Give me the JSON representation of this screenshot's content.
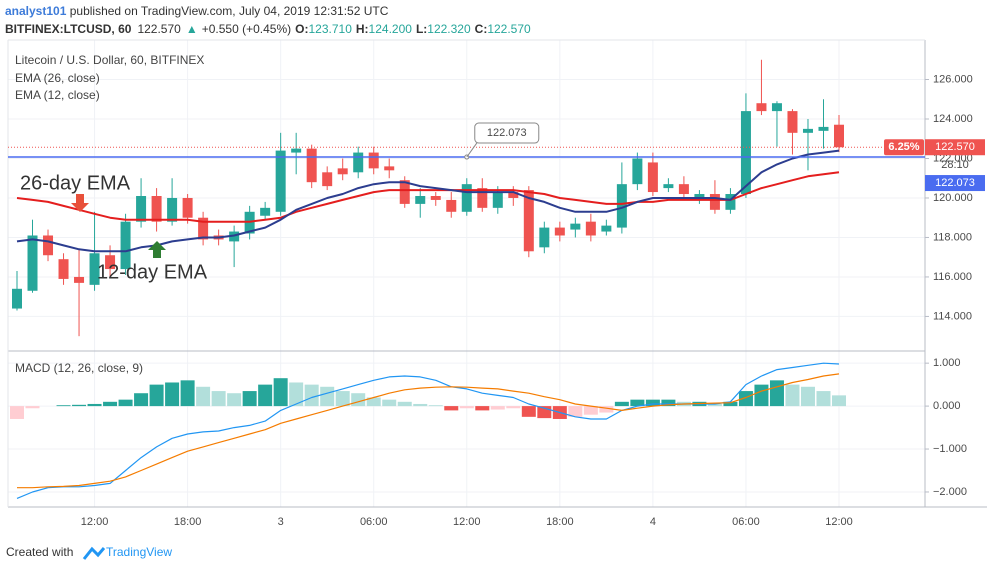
{
  "header": {
    "author": "analyst101",
    "published": " published on TradingView.com, July 04, 2019 12:31:52 UTC",
    "symbol": "BITFINEX:LTCUSD, 60",
    "last": "122.570",
    "change_arrow": "▲",
    "change": "+0.550 (+0.45%)",
    "ohlc": [
      {
        "key": "O:",
        "value": "123.710"
      },
      {
        "key": "H:",
        "value": "124.200"
      },
      {
        "key": "L:",
        "value": "122.320"
      },
      {
        "key": "C:",
        "value": "122.570"
      }
    ]
  },
  "chart_data": [
    {
      "type": "candlestick",
      "title": "Litecoin / U.S. Dollar, 60, BITFINEX",
      "categories": [
        null,
        null,
        null,
        null,
        null,
        "12:00",
        null,
        null,
        null,
        null,
        null,
        "18:00",
        null,
        null,
        null,
        null,
        null,
        "3",
        null,
        null,
        null,
        null,
        null,
        "06:00",
        null,
        null,
        null,
        null,
        null,
        "12:00",
        null,
        null,
        null,
        null,
        null,
        "18:00",
        null,
        null,
        null,
        null,
        null,
        "4",
        null,
        null,
        null,
        null,
        null,
        "06:00",
        null,
        null,
        null,
        null,
        null,
        "12:00"
      ],
      "open": [
        114.4,
        115.3,
        118.1,
        116.9,
        116.0,
        115.6,
        117.1,
        116.4,
        118.8,
        120.1,
        118.8,
        120.0,
        119.0,
        118.1,
        117.8,
        118.2,
        119.1,
        119.3,
        122.3,
        122.5,
        121.3,
        121.5,
        121.3,
        122.3,
        121.6,
        120.9,
        119.7,
        120.1,
        119.9,
        119.3,
        120.5,
        119.5,
        120.3,
        120.4,
        117.5,
        118.5,
        118.4,
        118.8,
        118.3,
        118.5,
        120.7,
        121.8,
        120.5,
        120.7,
        120.0,
        120.2,
        119.4,
        120.2,
        124.8,
        124.4,
        124.4,
        123.3,
        123.4,
        123.71
      ],
      "high": [
        116.3,
        118.9,
        118.4,
        117.2,
        117.4,
        119.3,
        117.6,
        119.2,
        121.0,
        120.5,
        121.0,
        120.2,
        119.3,
        118.4,
        118.6,
        119.6,
        119.8,
        123.3,
        123.3,
        122.7,
        121.6,
        122.0,
        122.6,
        122.6,
        122.0,
        121.1,
        120.5,
        120.3,
        120.3,
        121.0,
        121.0,
        120.6,
        120.6,
        120.6,
        118.8,
        118.8,
        119.0,
        119.2,
        118.9,
        121.8,
        122.3,
        122.3,
        121.0,
        121.1,
        120.4,
        120.9,
        120.5,
        125.3,
        127.0,
        124.9,
        124.5,
        124.0,
        125.0,
        124.2
      ],
      "low": [
        114.3,
        115.2,
        116.8,
        115.6,
        113.0,
        115.3,
        116.0,
        116.1,
        118.5,
        118.3,
        118.6,
        118.7,
        117.6,
        117.6,
        116.5,
        117.9,
        118.9,
        119.1,
        121.2,
        120.5,
        120.4,
        120.9,
        121.0,
        121.2,
        121.0,
        119.5,
        119.0,
        119.6,
        119.0,
        119.1,
        119.3,
        119.2,
        119.6,
        117.0,
        117.2,
        117.8,
        118.0,
        117.8,
        118.1,
        118.2,
        120.4,
        120.1,
        120.3,
        119.9,
        119.7,
        119.2,
        119.2,
        120.0,
        124.2,
        122.6,
        122.2,
        121.4,
        122.5,
        122.32
      ],
      "close": [
        115.4,
        118.1,
        117.1,
        115.9,
        115.7,
        117.2,
        116.4,
        118.8,
        120.1,
        118.8,
        120.0,
        119.0,
        117.9,
        117.9,
        118.3,
        119.3,
        119.5,
        122.4,
        122.5,
        120.8,
        120.6,
        121.2,
        122.3,
        121.5,
        121.4,
        119.7,
        120.1,
        119.9,
        119.3,
        120.7,
        119.5,
        120.3,
        120.0,
        117.3,
        118.5,
        118.1,
        118.7,
        118.1,
        118.6,
        120.7,
        122.0,
        120.3,
        120.7,
        120.2,
        120.2,
        119.4,
        120.2,
        124.4,
        124.4,
        124.8,
        123.3,
        123.5,
        123.6,
        122.57
      ],
      "up_color": "#26a69a",
      "down_color": "#ef5350",
      "series": [
        {
          "name": "EMA (26, close)",
          "color": "#e41e1e",
          "values": [
            120.0,
            119.9,
            119.8,
            119.6,
            119.4,
            119.2,
            119.0,
            118.9,
            118.9,
            118.9,
            118.9,
            118.9,
            118.8,
            118.8,
            118.8,
            118.8,
            118.9,
            119.0,
            119.3,
            119.5,
            119.7,
            119.9,
            120.1,
            120.3,
            120.4,
            120.4,
            120.4,
            120.4,
            120.4,
            120.4,
            120.4,
            120.4,
            120.4,
            120.3,
            120.2,
            120.0,
            119.9,
            119.8,
            119.7,
            119.7,
            119.8,
            119.8,
            119.9,
            119.9,
            119.9,
            119.9,
            119.9,
            120.2,
            120.5,
            120.7,
            120.9,
            121.1,
            121.2,
            121.3
          ]
        },
        {
          "name": "EMA (12, close)",
          "color": "#2c3d8f",
          "values": [
            117.8,
            117.9,
            117.8,
            117.6,
            117.4,
            117.3,
            117.3,
            117.3,
            117.5,
            117.6,
            117.8,
            117.9,
            118.0,
            118.0,
            118.1,
            118.3,
            118.5,
            118.9,
            119.4,
            119.7,
            120.0,
            120.2,
            120.5,
            120.7,
            120.8,
            120.8,
            120.6,
            120.5,
            120.4,
            120.3,
            120.3,
            120.3,
            120.3,
            120.0,
            119.8,
            119.5,
            119.3,
            119.3,
            119.3,
            119.5,
            119.8,
            120.0,
            120.0,
            120.0,
            120.0,
            120.0,
            119.9,
            120.6,
            121.3,
            121.7,
            122.0,
            122.2,
            122.3,
            122.4
          ]
        }
      ],
      "ylim": [
        112.3,
        127.9
      ],
      "yticks": [
        {
          "value": 114,
          "label": "114.000"
        },
        {
          "value": 116,
          "label": "116.000"
        },
        {
          "value": 118,
          "label": "118.000"
        },
        {
          "value": 120,
          "label": "120.000"
        },
        {
          "value": 122,
          "label": "122.000"
        },
        {
          "value": 124,
          "label": "124.000"
        },
        {
          "value": 126,
          "label": "126.000"
        }
      ],
      "grid": true,
      "horizontal_lines": [
        {
          "value": 122.57,
          "label": "122.570",
          "color": "#ef5350",
          "style": "dotted"
        },
        {
          "value": 122.073,
          "label": "122.073",
          "color": "#4a6cf0",
          "style": "solid"
        }
      ],
      "percent_label": "6.25%",
      "countdown": "28:10",
      "annotations": [
        {
          "text": "26-day EMA",
          "color": "#e8503a"
        },
        {
          "text": "12-day EMA",
          "color": "#2e7d32"
        }
      ]
    },
    {
      "type": "macd",
      "title": "MACD (12, 26, close, 9)",
      "histogram": [
        -0.3,
        -0.05,
        0.0,
        0.02,
        0.03,
        0.05,
        0.1,
        0.15,
        0.3,
        0.5,
        0.55,
        0.6,
        0.45,
        0.35,
        0.3,
        0.35,
        0.5,
        0.65,
        0.55,
        0.5,
        0.45,
        0.35,
        0.3,
        0.2,
        0.15,
        0.1,
        0.05,
        0.02,
        -0.1,
        -0.05,
        -0.1,
        -0.08,
        -0.05,
        -0.25,
        -0.28,
        -0.3,
        -0.25,
        -0.2,
        -0.15,
        0.1,
        0.15,
        0.15,
        0.15,
        0.1,
        0.1,
        0.05,
        0.1,
        0.35,
        0.5,
        0.6,
        0.5,
        0.45,
        0.35,
        0.25
      ],
      "histogram_colors": [
        "#26a69a",
        "#b2dfdb",
        "#ef5350",
        "#ffcdd2"
      ],
      "series": [
        {
          "name": "MACD",
          "color": "#2196f3",
          "values": [
            -2.15,
            -2.0,
            -1.9,
            -1.88,
            -1.88,
            -1.85,
            -1.8,
            -1.5,
            -1.2,
            -0.95,
            -0.75,
            -0.65,
            -0.6,
            -0.58,
            -0.5,
            -0.45,
            -0.35,
            -0.1,
            0.05,
            0.2,
            0.3,
            0.4,
            0.5,
            0.6,
            0.68,
            0.7,
            0.68,
            0.6,
            0.45,
            0.4,
            0.3,
            0.25,
            0.2,
            0.05,
            -0.05,
            -0.15,
            -0.25,
            -0.3,
            -0.3,
            -0.1,
            0.0,
            0.05,
            0.05,
            0.05,
            0.05,
            0.05,
            0.1,
            0.5,
            0.7,
            0.85,
            0.9,
            0.95,
            1.0,
            0.98
          ]
        },
        {
          "name": "Signal",
          "color": "#f57c00",
          "values": [
            -1.9,
            -1.9,
            -1.88,
            -1.87,
            -1.85,
            -1.8,
            -1.75,
            -1.65,
            -1.5,
            -1.35,
            -1.2,
            -1.05,
            -0.95,
            -0.85,
            -0.75,
            -0.65,
            -0.55,
            -0.4,
            -0.3,
            -0.2,
            -0.1,
            0.0,
            0.1,
            0.2,
            0.3,
            0.38,
            0.42,
            0.44,
            0.45,
            0.44,
            0.42,
            0.4,
            0.35,
            0.3,
            0.22,
            0.15,
            0.05,
            0.0,
            -0.05,
            -0.1,
            -0.05,
            0.0,
            0.03,
            0.05,
            0.06,
            0.07,
            0.08,
            0.2,
            0.35,
            0.45,
            0.55,
            0.62,
            0.7,
            0.75
          ]
        }
      ],
      "ylim": [
        -2.35,
        1.26
      ],
      "yticks": [
        {
          "value": -2,
          "label": "−2.000"
        },
        {
          "value": -1,
          "label": "−1.000"
        },
        {
          "value": 0,
          "label": "0.000"
        },
        {
          "value": 1,
          "label": "1.000"
        }
      ]
    }
  ],
  "footer": {
    "created": "Created with",
    "brand": "TradingView"
  }
}
